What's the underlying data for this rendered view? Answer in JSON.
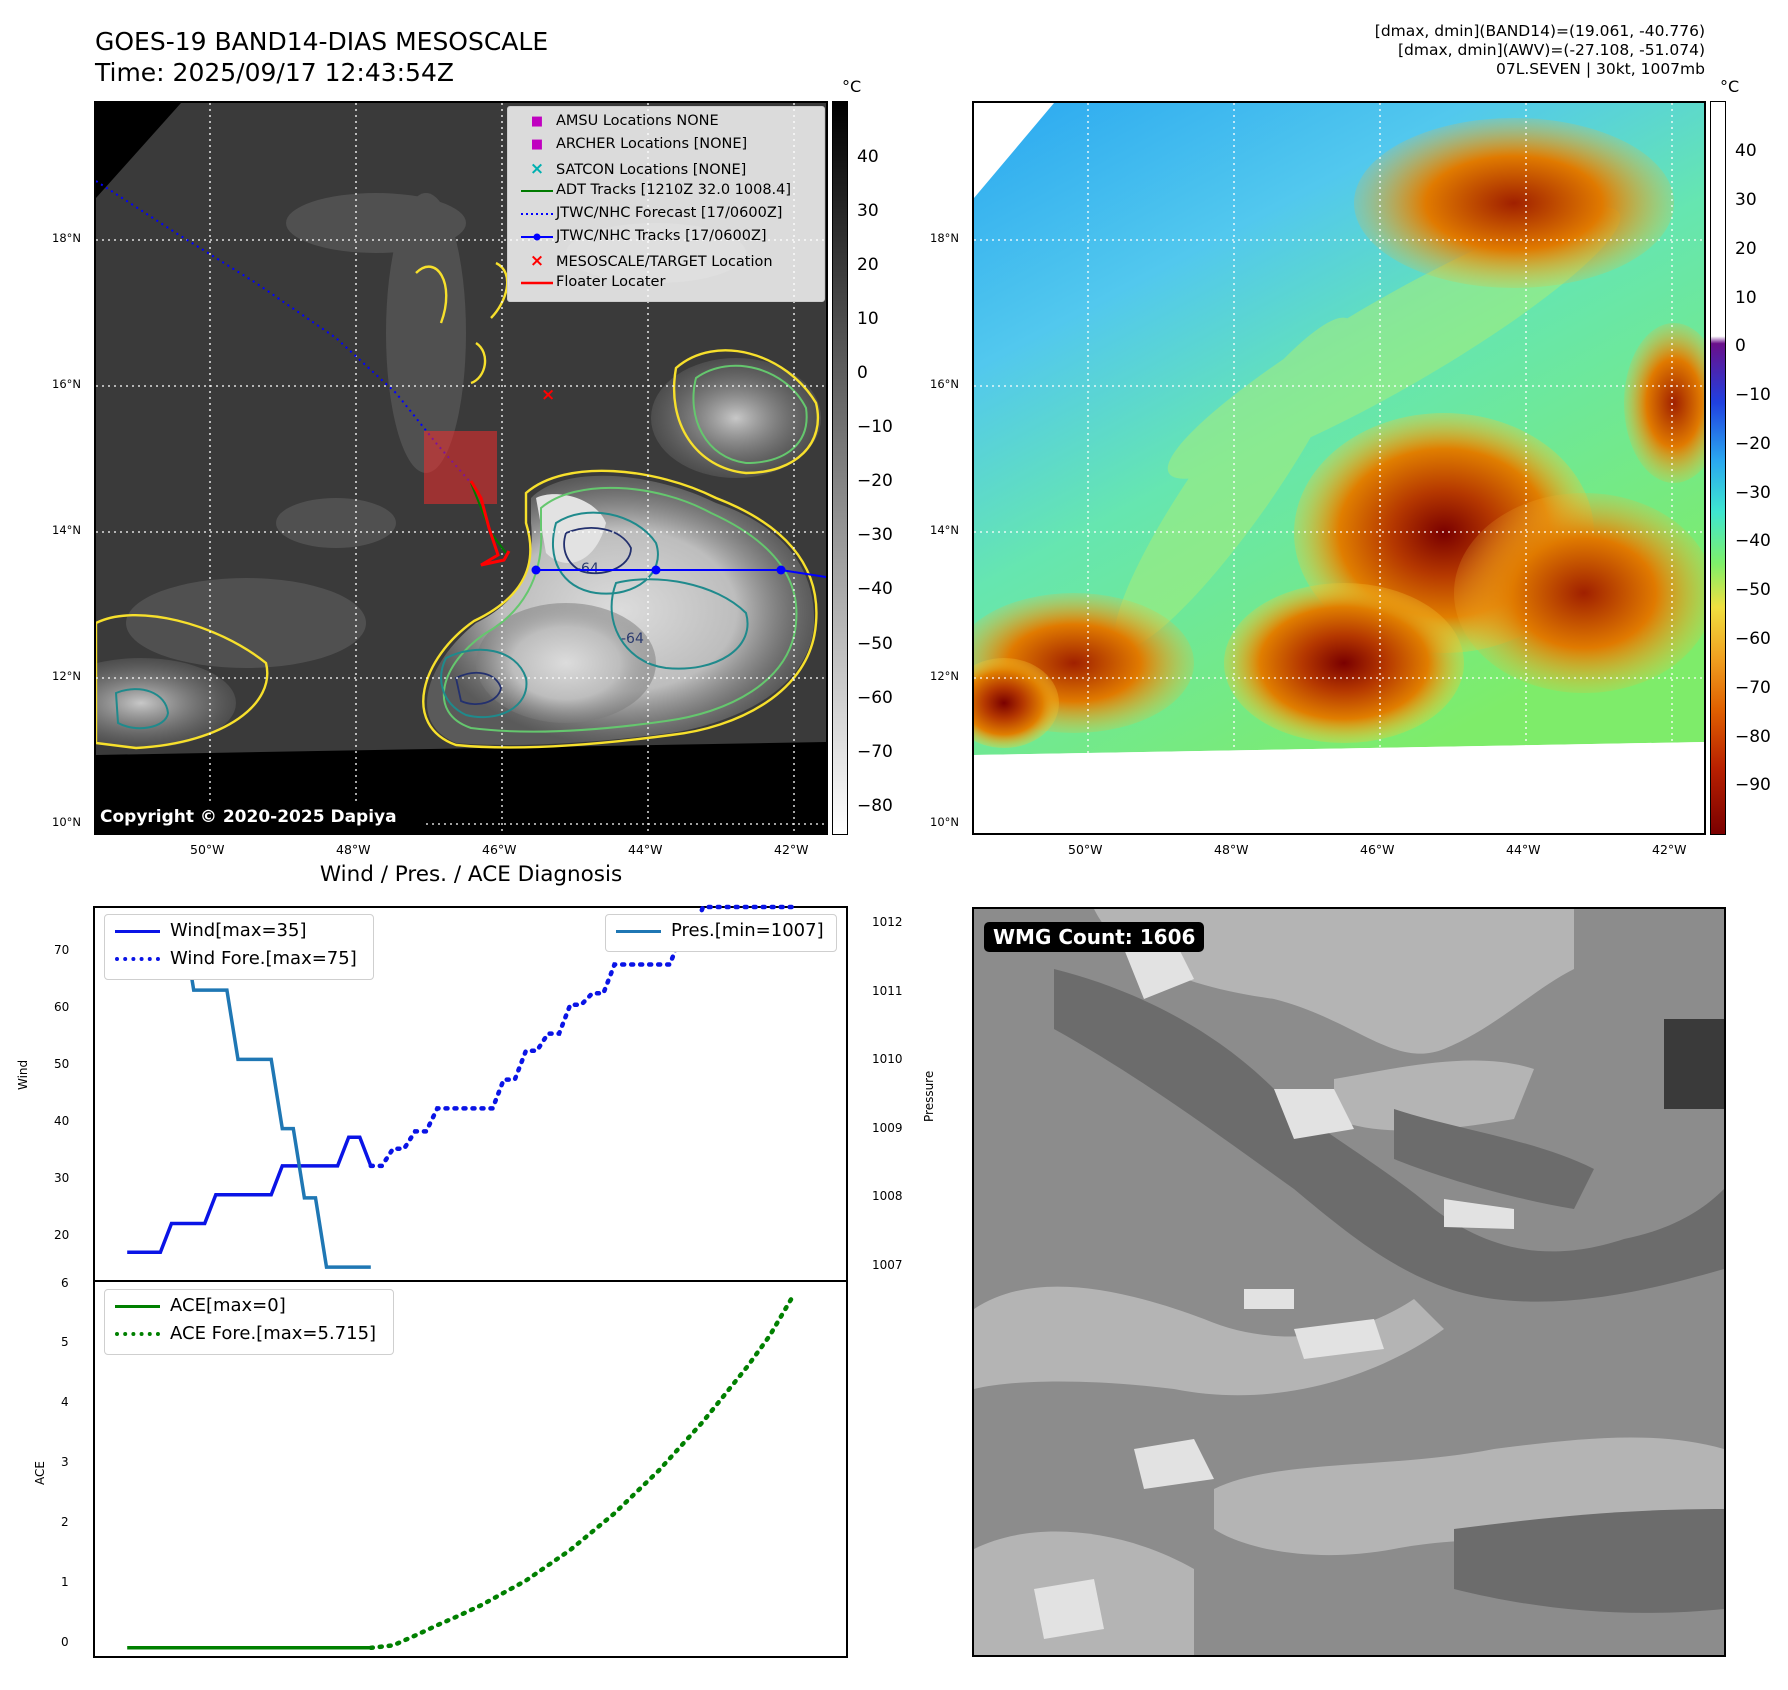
{
  "header": {
    "title": "GOES-19 BAND14-DIAS MESOSCALE",
    "time": "Time: 2025/09/17 12:43:54Z",
    "info_line1": "[dmax, dmin](BAND14)=(19.061, -40.776)",
    "info_line2": "[dmax, dmin](AWV)=(-27.108, -51.074)",
    "info_line3": "07L.SEVEN | 30kt, 1007mb"
  },
  "map_axes": {
    "lat_labels": [
      "18°N",
      "16°N",
      "14°N",
      "12°N",
      "10°N"
    ],
    "lon_labels": [
      "50°W",
      "48°W",
      "46°W",
      "44°W",
      "42°W"
    ]
  },
  "ir_panel": {
    "unit": "°C",
    "colorbar_ticks": [
      "40",
      "30",
      "20",
      "10",
      "0",
      "−10",
      "−20",
      "−30",
      "−40",
      "−50",
      "−60",
      "−70",
      "−80"
    ],
    "copyright": "Copyright © 2020-2025 Dapiya",
    "legend": [
      {
        "symbol": "■",
        "color": "#c000c0",
        "label": "AMSU Locations NONE"
      },
      {
        "symbol": "■",
        "color": "#c000c0",
        "label": "ARCHER Locations [NONE]"
      },
      {
        "symbol": "×",
        "color": "#00b0b0",
        "label": "SATCON Locations [NONE]"
      },
      {
        "symbol": "line",
        "color": "#007a00",
        "label": "ADT Tracks [1210Z 32.0 1008.4]"
      },
      {
        "symbol": "dotted",
        "color": "#0000ff",
        "label": "JTWC/NHC Forecast [17/0600Z]"
      },
      {
        "symbol": "linedot",
        "color": "#0000ff",
        "label": "JTWC/NHC Tracks [17/0600Z]"
      },
      {
        "symbol": "×",
        "color": "#ff0000",
        "label": "MESOSCALE/TARGET Location"
      },
      {
        "symbol": "line",
        "color": "#ff0000",
        "label": "Floater Locater"
      }
    ],
    "contour_labels": [
      "-64",
      "-64"
    ]
  },
  "awv_panel": {
    "unit": "°C",
    "colorbar_ticks": [
      "40",
      "30",
      "20",
      "10",
      "0",
      "−10",
      "−20",
      "−30",
      "−40",
      "−50",
      "−60",
      "−70",
      "−80",
      "−90"
    ]
  },
  "wmg_panel": {
    "count_label": "WMG Count: 1606"
  },
  "diagnosis": {
    "title": "Wind / Pres. / ACE Diagnosis",
    "wind_legend": [
      "Wind[max=35]",
      "Wind Fore.[max=75]"
    ],
    "pres_legend": "Pres.[min=1007]",
    "ace_legend": [
      "ACE[max=0]",
      "ACE Fore.[max=5.715]"
    ],
    "wind_ylabel": "Wind",
    "pres_ylabel": "Pressure",
    "ace_ylabel": "ACE",
    "wind_ticks": [
      "70",
      "60",
      "50",
      "40",
      "30",
      "20"
    ],
    "pres_ticks": [
      "1012",
      "1011",
      "1010",
      "1009",
      "1008",
      "1007"
    ],
    "ace_ticks": [
      "6",
      "5",
      "4",
      "3",
      "2",
      "1",
      "0"
    ],
    "colors": {
      "wind": "#0a14e6",
      "pres": "#1f77b4",
      "ace": "#008000"
    }
  },
  "chart_data": {
    "type": "line",
    "title": "Wind / Pres. / ACE Diagnosis",
    "xlabel": "",
    "series": [
      {
        "name": "Wind[max=35]",
        "axis": "Wind",
        "x": [
          0,
          1,
          2,
          3,
          4,
          5,
          6,
          7,
          8,
          9,
          10,
          11
        ],
        "values": [
          15,
          15,
          20,
          20,
          25,
          25,
          25,
          30,
          30,
          30,
          35,
          30
        ]
      },
      {
        "name": "Wind Fore.[max=75]",
        "axis": "Wind",
        "x": [
          11,
          12,
          13,
          14,
          15,
          16,
          17,
          18,
          19,
          20,
          21,
          22,
          23,
          24,
          25,
          26,
          27,
          28,
          29,
          30
        ],
        "values": [
          30,
          33,
          36,
          40,
          40,
          40,
          45,
          50,
          53,
          58,
          60,
          65,
          65,
          65,
          70,
          75,
          75,
          75,
          75,
          75
        ]
      },
      {
        "name": "Pres.[min=1007]",
        "axis": "Pressure",
        "x": [
          1,
          2,
          3,
          4,
          5,
          6,
          7,
          8,
          9,
          10,
          11
        ],
        "values": [
          1012,
          1012,
          1011,
          1011,
          1010,
          1010,
          1009,
          1008,
          1007,
          1007,
          1007
        ]
      },
      {
        "name": "ACE[max=0]",
        "axis": "ACE",
        "x": [
          0,
          11
        ],
        "values": [
          0,
          0
        ]
      },
      {
        "name": "ACE Fore.[max=5.715]",
        "axis": "ACE",
        "x": [
          11,
          12,
          13,
          14,
          15,
          16,
          17,
          18,
          19,
          20,
          21,
          22,
          23,
          24,
          25,
          26,
          27,
          28,
          29,
          30
        ],
        "values": [
          0,
          0.04,
          0.2,
          0.37,
          0.53,
          0.7,
          0.9,
          1.1,
          1.35,
          1.6,
          1.9,
          2.2,
          2.55,
          2.9,
          3.3,
          3.7,
          4.15,
          4.6,
          5.1,
          5.715
        ]
      }
    ],
    "ylim_wind": [
      10,
      75
    ],
    "ylim_pressure": [
      1006.8,
      1012.2
    ],
    "ylim_ace": [
      -0.15,
      6
    ],
    "xlim": [
      -1.5,
      32.5
    ]
  }
}
